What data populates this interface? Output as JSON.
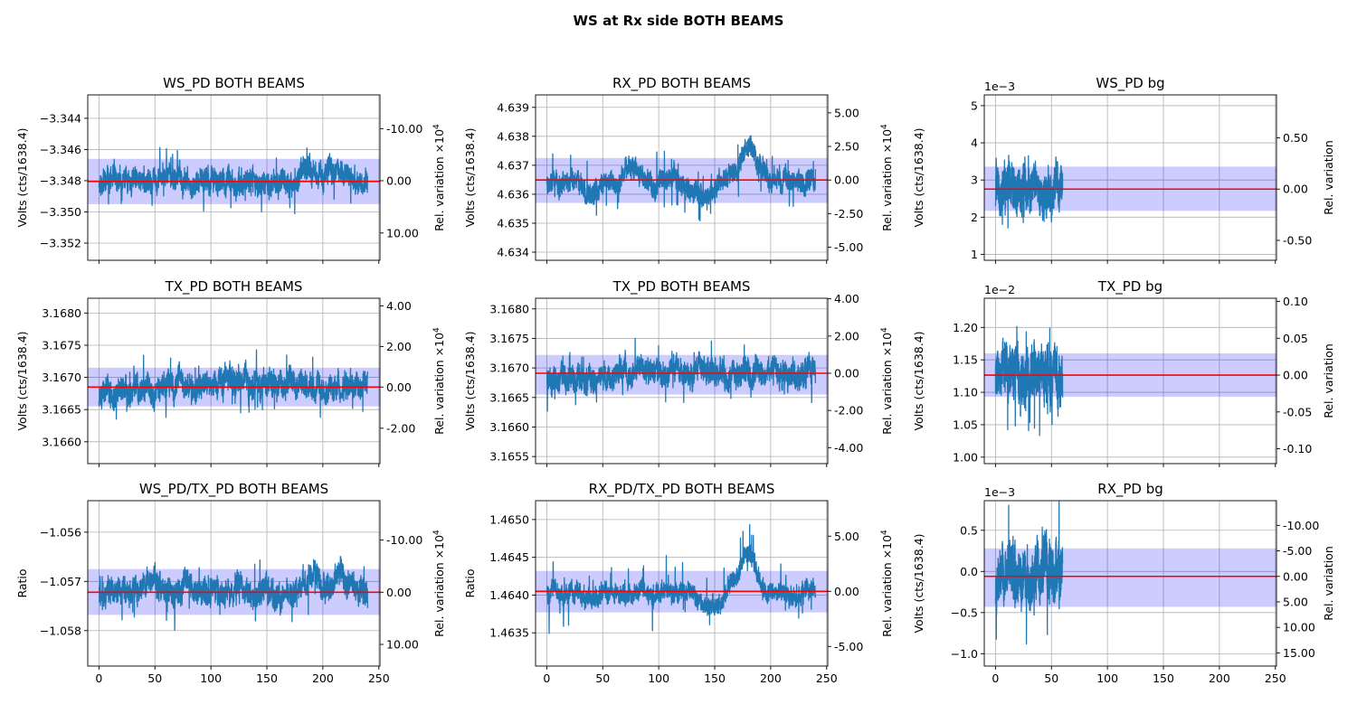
{
  "figure": {
    "title": "WS at Rx side BOTH BEAMS"
  },
  "chart_data": [
    {
      "type": "line",
      "title": "WS_PD BOTH BEAMS",
      "xlabel": "",
      "ylabel": "Volts (cts/1638.4)",
      "y2label": "Rel. variation ×10",
      "y2label_sup": "4",
      "xlim": [
        -10,
        251
      ],
      "ylim": [
        -3.3531,
        -3.3425
      ],
      "xticks": [
        "0",
        "50",
        "100",
        "150",
        "200",
        "250"
      ],
      "show_xticklabels": false,
      "yticks": [
        {
          "v": -3.344,
          "t": "−3.344"
        },
        {
          "v": -3.346,
          "t": "−3.346"
        },
        {
          "v": -3.348,
          "t": "−3.348"
        },
        {
          "v": -3.35,
          "t": "−3.350"
        },
        {
          "v": -3.352,
          "t": "−3.352"
        }
      ],
      "y2ticks": [
        {
          "v": -3.34466,
          "t": "-10.00"
        },
        {
          "v": -3.348,
          "t": "0.00"
        },
        {
          "v": -3.35135,
          "t": "10.00"
        }
      ],
      "mean": -3.34805,
      "band": [
        -3.3495,
        -3.3466
      ],
      "series": [
        {
          "x_range": [
            0,
            240
          ],
          "n": 1700,
          "amplitude": 0.0012,
          "spikes": 0.0017,
          "seed": 11,
          "bumps": [
            [
              60,
              15,
              0.0003
            ],
            [
              190,
              10,
              0.0009
            ],
            [
              210,
              8,
              0.0008
            ],
            [
              110,
              20,
              -0.0002
            ]
          ]
        }
      ]
    },
    {
      "type": "line",
      "title": "RX_PD BOTH BEAMS",
      "xlabel": "",
      "ylabel": "Volts (cts/1638.4)",
      "y2label": "Rel. variation ×10",
      "y2label_sup": "4",
      "xlim": [
        -10,
        251
      ],
      "ylim": [
        4.63372,
        4.63943
      ],
      "xticks": [
        "0",
        "50",
        "100",
        "150",
        "200",
        "250"
      ],
      "show_xticklabels": false,
      "yticks": [
        {
          "v": 4.634,
          "t": "4.634"
        },
        {
          "v": 4.635,
          "t": "4.635"
        },
        {
          "v": 4.636,
          "t": "4.636"
        },
        {
          "v": 4.637,
          "t": "4.637"
        },
        {
          "v": 4.638,
          "t": "4.638"
        },
        {
          "v": 4.639,
          "t": "4.639"
        }
      ],
      "y2ticks": [
        {
          "v": 4.63881,
          "t": "5.00"
        },
        {
          "v": 4.63765,
          "t": "2.50"
        },
        {
          "v": 4.63649,
          "t": "0.00"
        },
        {
          "v": 4.63533,
          "t": "-2.50"
        },
        {
          "v": 4.63417,
          "t": "-5.00"
        }
      ],
      "mean": 4.63649,
      "band": [
        4.6357,
        4.63725
      ],
      "series": [
        {
          "x_range": [
            0,
            240
          ],
          "n": 1700,
          "amplitude": 0.0006,
          "spikes": 0.001,
          "seed": 23,
          "bumps": [
            [
              40,
              8,
              -0.0007
            ],
            [
              140,
              12,
              -0.0006
            ],
            [
              180,
              10,
              0.0012
            ],
            [
              75,
              10,
              0.0004
            ]
          ]
        }
      ]
    },
    {
      "type": "line",
      "title": "WS_PD bg",
      "xlabel": "",
      "ylabel": "Volts (cts/1638.4)",
      "y2label": "Rel. variation",
      "y2label_sup": "",
      "offset_text": "1e−3",
      "xlim": [
        -10,
        251
      ],
      "ylim": [
        0.84,
        5.29
      ],
      "xticks": [
        "0",
        "50",
        "100",
        "150",
        "200",
        "250"
      ],
      "show_xticklabels": false,
      "yticks": [
        {
          "v": 1,
          "t": "1"
        },
        {
          "v": 2,
          "t": "2"
        },
        {
          "v": 3,
          "t": "3"
        },
        {
          "v": 4,
          "t": "4"
        },
        {
          "v": 5,
          "t": "5"
        }
      ],
      "y2ticks": [
        {
          "v": 4.135,
          "t": "0.50"
        },
        {
          "v": 2.755,
          "t": "0.00"
        },
        {
          "v": 1.375,
          "t": "-0.50"
        }
      ],
      "mean": 2.755,
      "band": [
        2.17,
        3.36
      ],
      "series": [
        {
          "x_range": [
            0,
            60
          ],
          "n": 700,
          "amplitude": 0.85,
          "spikes": 1.0,
          "seed": 31,
          "bumps": []
        }
      ]
    },
    {
      "type": "line",
      "title": "TX_PD BOTH BEAMS",
      "xlabel": "",
      "ylabel": "Volts (cts/1638.4)",
      "y2label": "Rel. variation ×10",
      "y2label_sup": "4",
      "xlim": [
        -10,
        251
      ],
      "ylim": [
        3.16566,
        3.16823
      ],
      "xticks": [
        "0",
        "50",
        "100",
        "150",
        "200",
        "250"
      ],
      "show_xticklabels": false,
      "yticks": [
        {
          "v": 3.166,
          "t": "3.1660"
        },
        {
          "v": 3.1665,
          "t": "3.1665"
        },
        {
          "v": 3.167,
          "t": "3.1670"
        },
        {
          "v": 3.1675,
          "t": "3.1675"
        },
        {
          "v": 3.168,
          "t": "3.1680"
        }
      ],
      "y2ticks": [
        {
          "v": 3.16811,
          "t": "4.00"
        },
        {
          "v": 3.16748,
          "t": "2.00"
        },
        {
          "v": 3.16685,
          "t": "0.00"
        },
        {
          "v": 3.16621,
          "t": "-2.00"
        }
      ],
      "mean": 3.16685,
      "band": [
        3.16655,
        3.16715
      ],
      "series": [
        {
          "x_range": [
            0,
            240
          ],
          "n": 1700,
          "amplitude": 0.00032,
          "spikes": 0.00045,
          "seed": 43,
          "bumps": [
            [
              10,
              25,
              -0.0001
            ],
            [
              130,
              60,
              8e-05
            ]
          ]
        }
      ]
    },
    {
      "type": "line",
      "title": "TX_PD BOTH BEAMS",
      "xlabel": "",
      "ylabel": "Volts (cts/1638.4)",
      "y2label": "Rel. variation ×10",
      "y2label_sup": "4",
      "xlim": [
        -10,
        251
      ],
      "ylim": [
        3.16538,
        3.16818
      ],
      "xticks": [
        "0",
        "50",
        "100",
        "150",
        "200",
        "250"
      ],
      "show_xticklabels": false,
      "yticks": [
        {
          "v": 3.1655,
          "t": "3.1655"
        },
        {
          "v": 3.166,
          "t": "3.1660"
        },
        {
          "v": 3.1665,
          "t": "3.1665"
        },
        {
          "v": 3.167,
          "t": "3.1670"
        },
        {
          "v": 3.1675,
          "t": "3.1675"
        },
        {
          "v": 3.168,
          "t": "3.1680"
        }
      ],
      "y2ticks": [
        {
          "v": 3.16817,
          "t": "4.00"
        },
        {
          "v": 3.16754,
          "t": "2.00"
        },
        {
          "v": 3.16691,
          "t": "0.00"
        },
        {
          "v": 3.16628,
          "t": "-2.00"
        },
        {
          "v": 3.16565,
          "t": "-4.00"
        }
      ],
      "mean": 3.16691,
      "band": [
        3.16655,
        3.16722
      ],
      "series": [
        {
          "x_range": [
            0,
            240
          ],
          "n": 1700,
          "amplitude": 0.00035,
          "spikes": 0.0005,
          "seed": 57,
          "bumps": [
            [
              5,
              20,
              -0.00015
            ]
          ]
        }
      ]
    },
    {
      "type": "line",
      "title": "TX_PD bg",
      "xlabel": "",
      "ylabel": "Volts (cts/1638.4)",
      "y2label": "Rel. variation",
      "y2label_sup": "",
      "offset_text": "1e−2",
      "xlim": [
        -10,
        251
      ],
      "ylim": [
        0.99,
        1.245
      ],
      "xticks": [
        "0",
        "50",
        "100",
        "150",
        "200",
        "250"
      ],
      "show_xticklabels": false,
      "yticks": [
        {
          "v": 1.0,
          "t": "1.00"
        },
        {
          "v": 1.05,
          "t": "1.05"
        },
        {
          "v": 1.1,
          "t": "1.10"
        },
        {
          "v": 1.15,
          "t": "1.15"
        },
        {
          "v": 1.2,
          "t": "1.20"
        }
      ],
      "y2ticks": [
        {
          "v": 1.24,
          "t": "0.10"
        },
        {
          "v": 1.1833,
          "t": "0.05"
        },
        {
          "v": 1.1265,
          "t": "0.00"
        },
        {
          "v": 1.0697,
          "t": "-0.05"
        },
        {
          "v": 1.013,
          "t": "-0.10"
        }
      ],
      "mean": 1.1265,
      "band": [
        1.093,
        1.16
      ],
      "series": [
        {
          "x_range": [
            0,
            60
          ],
          "n": 700,
          "amplitude": 0.06,
          "spikes": 0.1,
          "seed": 61,
          "bumps": []
        }
      ]
    },
    {
      "type": "line",
      "title": "WS_PD/TX_PD BOTH BEAMS",
      "xlabel": "",
      "ylabel": "Ratio",
      "y2label": "Rel. variation ×10",
      "y2label_sup": "4",
      "xlim": [
        -10,
        251
      ],
      "ylim": [
        -1.05872,
        -1.05536
      ],
      "xticks": [
        "0",
        "50",
        "100",
        "150",
        "200",
        "250"
      ],
      "show_xticklabels": true,
      "yticks": [
        {
          "v": -1.056,
          "t": "−1.056"
        },
        {
          "v": -1.057,
          "t": "−1.057"
        },
        {
          "v": -1.058,
          "t": "−1.058"
        }
      ],
      "y2ticks": [
        {
          "v": -1.05616,
          "t": "-10.00"
        },
        {
          "v": -1.05722,
          "t": "0.00"
        },
        {
          "v": -1.05828,
          "t": "10.00"
        }
      ],
      "mean": -1.05722,
      "band": [
        -1.05768,
        -1.05675
      ],
      "series": [
        {
          "x_range": [
            0,
            240
          ],
          "n": 1700,
          "amplitude": 0.00042,
          "spikes": 0.0006,
          "seed": 71,
          "bumps": [
            [
              60,
              15,
              0.0001
            ],
            [
              190,
              10,
              0.0003
            ],
            [
              215,
              8,
              0.00035
            ]
          ]
        }
      ]
    },
    {
      "type": "line",
      "title": "RX_PD/TX_PD BOTH BEAMS",
      "xlabel": "",
      "ylabel": "Ratio",
      "y2label": "Rel. variation ×10",
      "y2label_sup": "4",
      "xlim": [
        -10,
        251
      ],
      "ylim": [
        1.46306,
        1.46525
      ],
      "xticks": [
        "0",
        "50",
        "100",
        "150",
        "200",
        "250"
      ],
      "show_xticklabels": true,
      "yticks": [
        {
          "v": 1.4635,
          "t": "1.4635"
        },
        {
          "v": 1.464,
          "t": "1.4640"
        },
        {
          "v": 1.4645,
          "t": "1.4645"
        },
        {
          "v": 1.465,
          "t": "1.4650"
        }
      ],
      "y2ticks": [
        {
          "v": 1.46478,
          "t": "5.00"
        },
        {
          "v": 1.46405,
          "t": "0.00"
        },
        {
          "v": 1.46332,
          "t": "-5.00"
        }
      ],
      "mean": 1.46405,
      "band": [
        1.46377,
        1.46432
      ],
      "series": [
        {
          "x_range": [
            0,
            240
          ],
          "n": 1700,
          "amplitude": 0.0002,
          "spikes": 0.0004,
          "seed": 83,
          "bumps": [
            [
              40,
              8,
              -0.0002
            ],
            [
              145,
              12,
              -0.0002
            ],
            [
              180,
              10,
              0.0005
            ]
          ]
        }
      ]
    },
    {
      "type": "line",
      "title": "RX_PD bg",
      "xlabel": "",
      "ylabel": "Volts (cts/1638.4)",
      "y2label": "Rel. variation",
      "y2label_sup": "",
      "offset_text": "1e−3",
      "xlim": [
        -10,
        251
      ],
      "ylim": [
        -1.15,
        0.86
      ],
      "xticks": [
        "0",
        "50",
        "100",
        "150",
        "200",
        "250"
      ],
      "show_xticklabels": true,
      "yticks": [
        {
          "v": 0.5,
          "t": "0.5"
        },
        {
          "v": 0.0,
          "t": "0.0"
        },
        {
          "v": -0.5,
          "t": "−0.5"
        },
        {
          "v": -1.0,
          "t": "−1.0"
        }
      ],
      "y2ticks": [
        {
          "v": 0.56,
          "t": "-10.00"
        },
        {
          "v": 0.25,
          "t": "-5.00"
        },
        {
          "v": -0.06,
          "t": "0.00"
        },
        {
          "v": -0.37,
          "t": "5.00"
        },
        {
          "v": -0.68,
          "t": "10.00"
        },
        {
          "v": -0.99,
          "t": "15.00"
        }
      ],
      "mean": -0.06,
      "band": [
        -0.43,
        0.28
      ],
      "series": [
        {
          "x_range": [
            0,
            60
          ],
          "n": 700,
          "amplitude": 0.5,
          "spikes": 0.75,
          "seed": 97,
          "bumps": []
        }
      ]
    }
  ],
  "colors": {
    "series": "#1f77b4",
    "mean_line": "#ff0000",
    "band": "#0000ff",
    "grid": "#b0b0b0"
  }
}
